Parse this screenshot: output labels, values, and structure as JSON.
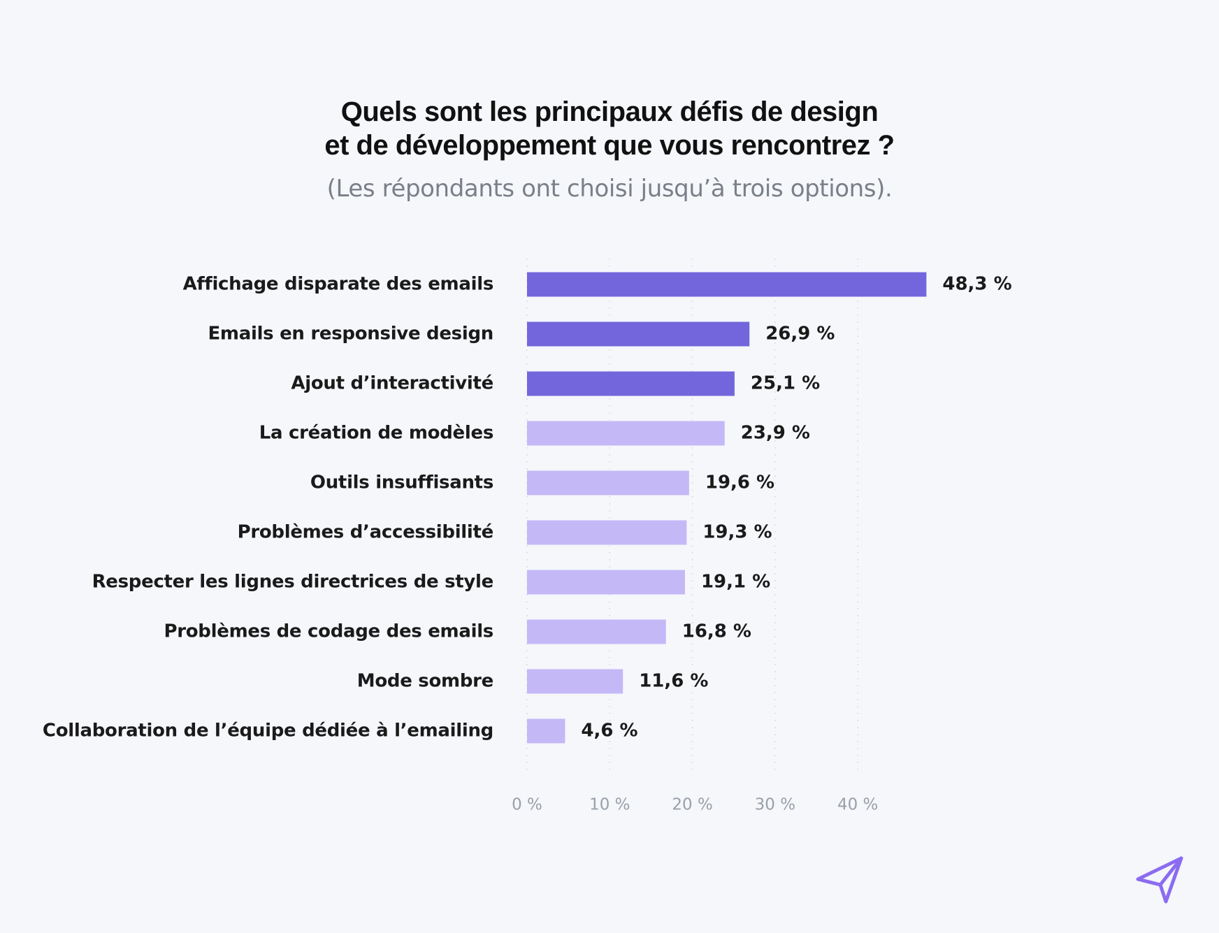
{
  "chart_data": {
    "type": "bar",
    "orientation": "horizontal",
    "title": "Quels sont les principaux défis de design et de développement que vous rencontrez ?",
    "title_lines": [
      "Quels sont les principaux défis de design",
      "et de développement que vous rencontrez ?"
    ],
    "subtitle": "(Les répondants ont choisi jusqu’à trois options).",
    "categories": [
      "Affichage disparate des emails",
      "Emails en responsive design",
      "Ajout d’interactivité",
      "La création de modèles",
      "Outils insuffisants",
      "Problèmes d’accessibilité",
      "Respecter les lignes directrices de style",
      "Problèmes de codage des emails",
      "Mode sombre",
      "Collaboration de l’équipe dédiée à l’emailing"
    ],
    "values": [
      48.3,
      26.9,
      25.1,
      23.9,
      19.6,
      19.3,
      19.1,
      16.8,
      11.6,
      4.6
    ],
    "value_labels": [
      "48,3 %",
      "26,9 %",
      "25,1 %",
      "23,9 %",
      "19,6 %",
      "19,3 %",
      "19,1 %",
      "16,8 %",
      "11,6 %",
      "4,6 %"
    ],
    "highlight_count": 3,
    "colors": {
      "highlight": "#7366dc",
      "normal": "#c5b8f7"
    },
    "xlim": [
      0,
      40
    ],
    "xticks": [
      0,
      10,
      20,
      30,
      40
    ],
    "xtick_labels": [
      "0 %",
      "10 %",
      "20 %",
      "30 %",
      "40 %"
    ],
    "grid": true,
    "xlabel": "",
    "ylabel": ""
  },
  "colors": {
    "background": "#f5f7fb",
    "title": "#111111",
    "subtitle": "#7a7f88",
    "logo": "#8b6cf0"
  },
  "logo": {
    "icon": "paper-plane-icon"
  }
}
